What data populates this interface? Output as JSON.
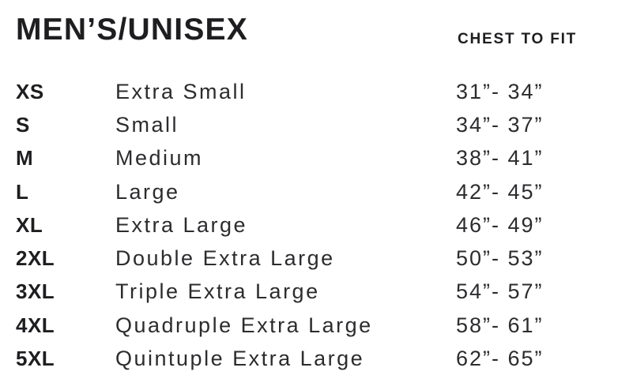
{
  "size_chart": {
    "title": "MEN’S/UNISEX",
    "chest_column_header": "CHEST TO FIT",
    "rows": [
      {
        "code": "XS",
        "name": "Extra Small",
        "chest": "31”- 34”"
      },
      {
        "code": "S",
        "name": "Small",
        "chest": "34”- 37”"
      },
      {
        "code": "M",
        "name": "Medium",
        "chest": "38”- 41”"
      },
      {
        "code": "L",
        "name": "Large",
        "chest": "42”- 45”"
      },
      {
        "code": "XL",
        "name": "Extra Large",
        "chest": "46”- 49”"
      },
      {
        "code": "2XL",
        "name": "Double Extra Large",
        "chest": "50”- 53”"
      },
      {
        "code": "3XL",
        "name": "Triple Extra Large",
        "chest": "54”- 57”"
      },
      {
        "code": "4XL",
        "name": "Quadruple Extra Large",
        "chest": "58”- 61”"
      },
      {
        "code": "5XL",
        "name": "Quintuple Extra Large",
        "chest": "62”- 65”"
      }
    ]
  },
  "colors": {
    "background": "#ffffff",
    "text_bold": "#1e1e21",
    "text_regular": "#2c2c2f"
  }
}
